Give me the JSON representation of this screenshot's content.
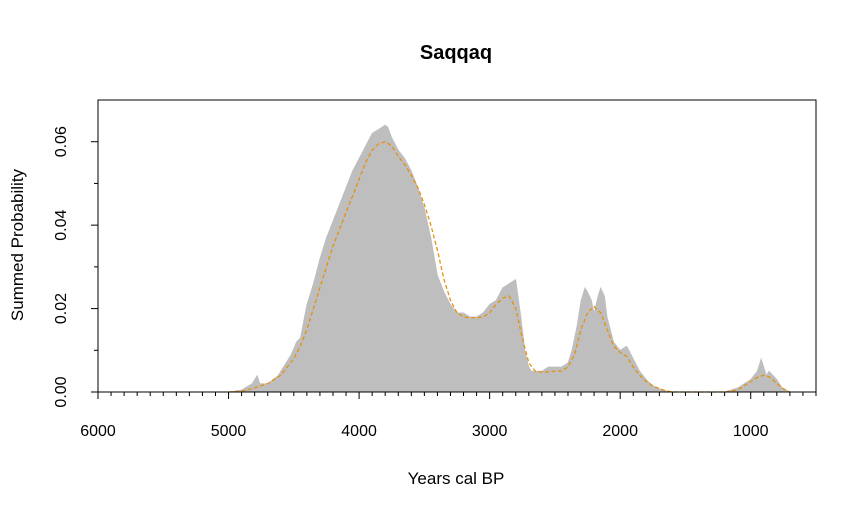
{
  "chart_data": {
    "type": "area",
    "title": "Saqqaq",
    "xlabel": "Years cal BP",
    "ylabel": "Summed Probability",
    "xlim": [
      6000,
      500
    ],
    "x_reversed": true,
    "ylim": [
      0,
      0.07
    ],
    "x_ticks": [
      6000,
      5000,
      4000,
      3000,
      2000,
      1000
    ],
    "x_tick_labels": [
      "6000",
      "5000",
      "4000",
      "3000",
      "2000",
      "1000"
    ],
    "x_minor_step": 100,
    "y_ticks": [
      0.0,
      0.02,
      0.04,
      0.06
    ],
    "y_tick_labels": [
      "0.00",
      "0.02",
      "0.04",
      "0.06"
    ],
    "y_minor_step": 0.01,
    "grid": false,
    "series": [
      {
        "style": "filled-area",
        "color": "#bebebe",
        "x": [
          5000,
          4900,
          4820,
          4780,
          4760,
          4700,
          4620,
          4560,
          4520,
          4480,
          4450,
          4400,
          4350,
          4300,
          4250,
          4200,
          4150,
          4100,
          4050,
          4000,
          3950,
          3900,
          3850,
          3800,
          3780,
          3750,
          3700,
          3650,
          3600,
          3550,
          3500,
          3450,
          3400,
          3350,
          3300,
          3250,
          3200,
          3150,
          3100,
          3050,
          3000,
          2950,
          2900,
          2850,
          2800,
          2760,
          2730,
          2700,
          2680,
          2650,
          2600,
          2550,
          2500,
          2450,
          2400,
          2370,
          2330,
          2300,
          2270,
          2250,
          2220,
          2200,
          2170,
          2150,
          2120,
          2100,
          2050,
          2000,
          1950,
          1900,
          1850,
          1800,
          1750,
          1700,
          1650,
          1600,
          1500,
          1400,
          1300,
          1200,
          1100,
          1050,
          1000,
          950,
          920,
          900,
          880,
          860,
          830,
          800,
          760,
          730,
          700
        ],
        "y": [
          0.0,
          0.0005,
          0.002,
          0.004,
          0.002,
          0.002,
          0.004,
          0.007,
          0.009,
          0.012,
          0.013,
          0.021,
          0.026,
          0.032,
          0.037,
          0.041,
          0.045,
          0.049,
          0.053,
          0.056,
          0.059,
          0.062,
          0.063,
          0.064,
          0.0635,
          0.061,
          0.058,
          0.056,
          0.053,
          0.049,
          0.044,
          0.037,
          0.028,
          0.024,
          0.021,
          0.019,
          0.019,
          0.018,
          0.018,
          0.019,
          0.021,
          0.022,
          0.025,
          0.026,
          0.027,
          0.018,
          0.01,
          0.006,
          0.005,
          0.005,
          0.005,
          0.006,
          0.006,
          0.006,
          0.007,
          0.01,
          0.016,
          0.022,
          0.025,
          0.024,
          0.022,
          0.019,
          0.023,
          0.025,
          0.023,
          0.018,
          0.012,
          0.01,
          0.011,
          0.008,
          0.005,
          0.003,
          0.0015,
          0.0008,
          0.0003,
          0.0,
          0.0,
          0.0,
          0.0,
          0.0,
          0.001,
          0.002,
          0.003,
          0.005,
          0.008,
          0.006,
          0.004,
          0.005,
          0.004,
          0.003,
          0.001,
          0.0005,
          0.0
        ]
      },
      {
        "style": "dashed-line",
        "color": "#e8900c",
        "x": [
          5000,
          4900,
          4800,
          4700,
          4600,
          4500,
          4450,
          4400,
          4350,
          4300,
          4250,
          4200,
          4150,
          4100,
          4050,
          4000,
          3950,
          3900,
          3850,
          3800,
          3750,
          3700,
          3650,
          3600,
          3550,
          3500,
          3450,
          3400,
          3350,
          3300,
          3250,
          3200,
          3150,
          3100,
          3050,
          3000,
          2950,
          2900,
          2850,
          2800,
          2750,
          2700,
          2650,
          2600,
          2550,
          2500,
          2450,
          2400,
          2350,
          2300,
          2250,
          2200,
          2150,
          2100,
          2050,
          2000,
          1950,
          1900,
          1850,
          1800,
          1750,
          1700,
          1650,
          1600,
          1500,
          1400,
          1300,
          1200,
          1100,
          1050,
          1000,
          950,
          900,
          850,
          800,
          750,
          700
        ],
        "y": [
          0.0,
          0.0002,
          0.001,
          0.002,
          0.004,
          0.008,
          0.011,
          0.015,
          0.02,
          0.025,
          0.03,
          0.035,
          0.039,
          0.043,
          0.047,
          0.051,
          0.055,
          0.058,
          0.0595,
          0.06,
          0.059,
          0.0565,
          0.0545,
          0.052,
          0.049,
          0.045,
          0.04,
          0.034,
          0.027,
          0.022,
          0.019,
          0.018,
          0.0178,
          0.0178,
          0.018,
          0.019,
          0.021,
          0.0225,
          0.023,
          0.02,
          0.013,
          0.007,
          0.005,
          0.0048,
          0.0048,
          0.005,
          0.005,
          0.006,
          0.009,
          0.015,
          0.019,
          0.0205,
          0.019,
          0.015,
          0.011,
          0.0095,
          0.0085,
          0.006,
          0.004,
          0.0025,
          0.0015,
          0.0008,
          0.0003,
          0.0,
          0.0,
          0.0,
          0.0,
          0.0,
          0.0005,
          0.0015,
          0.0025,
          0.0035,
          0.004,
          0.0035,
          0.002,
          0.0008,
          0.0
        ]
      }
    ]
  }
}
